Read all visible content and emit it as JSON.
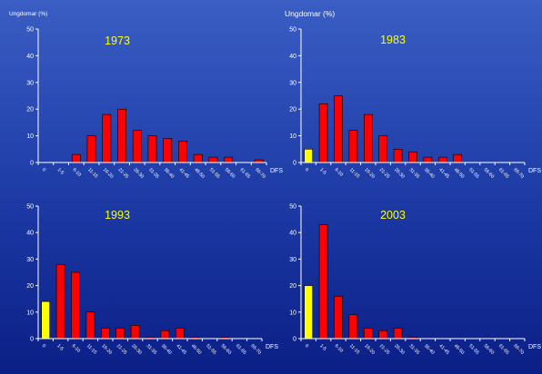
{
  "colors": {
    "bar": "#ff0000",
    "bar_highlight": "#ffff00",
    "bar_stroke": "#000000",
    "axis": "#ffffff",
    "text": "#ffffff",
    "title": "#ffff00"
  },
  "chart_data": [
    {
      "type": "bar",
      "title": "1973",
      "ylabel": "Ungdomar (%)",
      "xlabel": "DFS",
      "ylim": [
        0,
        50
      ],
      "yticks": [
        0,
        10,
        20,
        30,
        40,
        50
      ],
      "grid": false,
      "legend": "none",
      "categories": [
        "0",
        "1-5",
        "6-10",
        "11-15",
        "16-20",
        "21-25",
        "26-30",
        "31-35",
        "36-40",
        "41-45",
        "46-50",
        "51-55",
        "56-60",
        "61-65",
        "66-70"
      ],
      "values": [
        0,
        0,
        3,
        10,
        18,
        20,
        12,
        10,
        9,
        8,
        3,
        2,
        2,
        0,
        1
      ],
      "highlight_index": null
    },
    {
      "type": "bar",
      "title": "1983",
      "ylabel": "Ungdomar (%)",
      "xlabel": "DFS",
      "ylim": [
        0,
        50
      ],
      "yticks": [
        0,
        10,
        20,
        30,
        40,
        50
      ],
      "grid": false,
      "legend": "none",
      "categories": [
        "0",
        "1-5",
        "6-10",
        "11-15",
        "16-20",
        "21-25",
        "26-30",
        "31-35",
        "36-40",
        "41-45",
        "46-50",
        "51-55",
        "56-60",
        "61-65",
        "66-70"
      ],
      "values": [
        5,
        22,
        25,
        12,
        18,
        10,
        5,
        4,
        2,
        2,
        3,
        0,
        0,
        0,
        0
      ],
      "highlight_index": 0
    },
    {
      "type": "bar",
      "title": "1993",
      "ylabel": "",
      "xlabel": "DFS",
      "ylim": [
        0,
        50
      ],
      "yticks": [
        0,
        10,
        20,
        30,
        40,
        50
      ],
      "grid": false,
      "legend": "none",
      "categories": [
        "0",
        "1-5",
        "6-10",
        "11-15",
        "16-20",
        "21-25",
        "26-30",
        "31-35",
        "36-40",
        "41-45",
        "46-50",
        "51-55",
        "56-60",
        "61-65",
        "66-70"
      ],
      "values": [
        14,
        28,
        25,
        10,
        4,
        4,
        5,
        0.5,
        3,
        4,
        0.5,
        0,
        0.5,
        0,
        0
      ],
      "highlight_index": 0
    },
    {
      "type": "bar",
      "title": "2003",
      "ylabel": "",
      "xlabel": "DFS",
      "ylim": [
        0,
        50
      ],
      "yticks": [
        0,
        10,
        20,
        30,
        40,
        50
      ],
      "grid": false,
      "legend": "none",
      "categories": [
        "0",
        "1-5",
        "6-10",
        "11-15",
        "16-20",
        "21-25",
        "26-30",
        "31-35",
        "36-40",
        "41-45",
        "46-50",
        "51-55",
        "56-60",
        "61-65",
        "66-70"
      ],
      "values": [
        20,
        43,
        16,
        9,
        4,
        3,
        4,
        0.5,
        0,
        0,
        0,
        0,
        0,
        0,
        0
      ],
      "highlight_index": 0
    }
  ]
}
